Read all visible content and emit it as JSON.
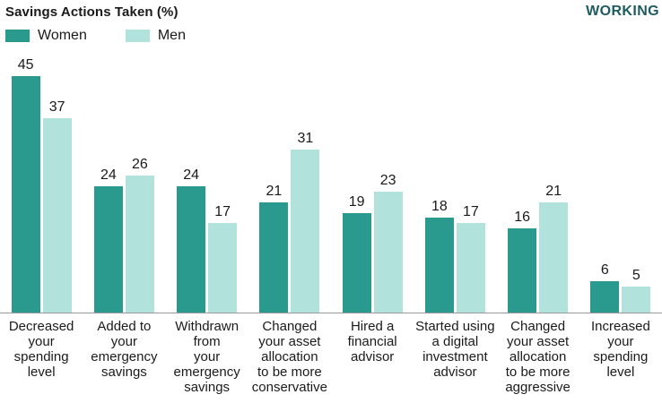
{
  "header": {
    "title": "Savings Actions Taken (%)",
    "brand": "WORKING"
  },
  "colors": {
    "women": "#2a9a8e",
    "men": "#b2e2dc",
    "brand_text": "#1e5b5e",
    "axis_line": "#999999",
    "text": "#1a1a1a"
  },
  "chart_data": {
    "type": "bar",
    "title": "Savings Actions Taken (%)",
    "categories": [
      "Decreased\nyour\nspending\nlevel",
      "Added to\nyour\nemergency\nsavings",
      "Withdrawn\nfrom\nyour\nemergency\nsavings",
      "Changed\nyour asset\nallocation\nto be more\nconservative",
      "Hired a\nfinancial\nadvisor",
      "Started using\na digital\ninvestment\nadvisor",
      "Changed\nyour asset\nallocation\nto be more\naggressive",
      "Increased\nyour\nspending\nlevel"
    ],
    "series": [
      {
        "name": "Women",
        "color": "#2a9a8e",
        "values": [
          45,
          24,
          24,
          21,
          19,
          18,
          16,
          6
        ]
      },
      {
        "name": "Men",
        "color": "#b2e2dc",
        "values": [
          37,
          26,
          17,
          31,
          23,
          17,
          21,
          5
        ]
      }
    ],
    "value_labels": true,
    "xlabel": "",
    "ylabel": "",
    "ylim": [
      0,
      45
    ],
    "grid": false,
    "legend_position": "top-left"
  }
}
